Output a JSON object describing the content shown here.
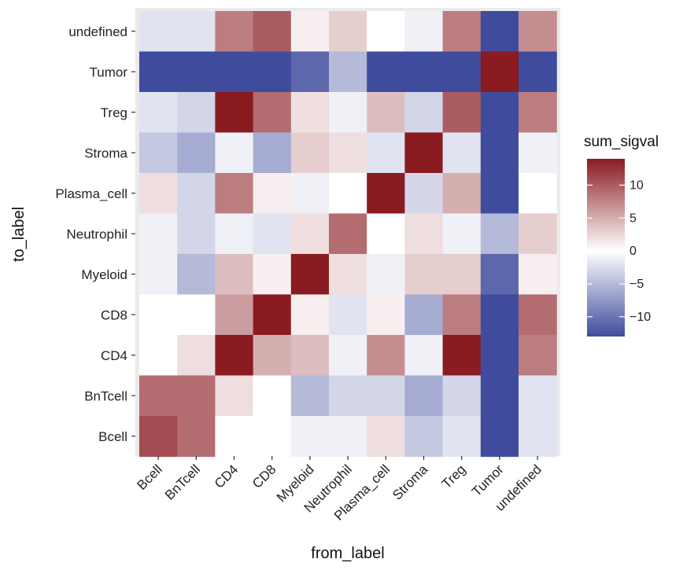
{
  "chart_data": {
    "type": "heatmap",
    "xlabel": "from_label",
    "ylabel": "to_label",
    "x_categories": [
      "Bcell",
      "BnTcell",
      "CD4",
      "CD8",
      "Myeloid",
      "Neutrophil",
      "Plasma_cell",
      "Stroma",
      "Treg",
      "Tumor",
      "undefined"
    ],
    "y_categories_top_to_bottom": [
      "undefined",
      "Tumor",
      "Treg",
      "Stroma",
      "Plasma_cell",
      "Neutrophil",
      "Myeloid",
      "CD8",
      "CD4",
      "BnTcell",
      "Bcell"
    ],
    "values": [
      [
        -2,
        -2,
        8,
        10,
        1,
        3,
        0,
        -1,
        8,
        -13,
        7
      ],
      [
        -13,
        -13,
        -13,
        -13,
        -11,
        -5,
        -13,
        -13,
        -13,
        14,
        -13
      ],
      [
        -2,
        -3,
        14,
        9,
        2,
        -1,
        4,
        -3,
        10,
        -13,
        8
      ],
      [
        -4,
        -6,
        -1,
        -6,
        3,
        2,
        -2,
        14,
        -2,
        -13,
        -1
      ],
      [
        2,
        -3,
        8,
        1,
        -1,
        0,
        14,
        -3,
        5,
        -13,
        0
      ],
      [
        -1,
        -3,
        -1,
        -2,
        2,
        9,
        0,
        2,
        -1,
        -5,
        3
      ],
      [
        -1,
        -5,
        4,
        1,
        14,
        2,
        -1,
        3,
        3,
        -11,
        1
      ],
      [
        0,
        0,
        6,
        14,
        1,
        -2,
        1,
        -6,
        8,
        -13,
        9
      ],
      [
        0,
        2,
        14,
        5,
        4,
        -1,
        7,
        -1,
        14,
        -13,
        8
      ],
      [
        9,
        9,
        2,
        0,
        -5,
        -3,
        -3,
        -6,
        -3,
        -13,
        -2
      ],
      [
        11,
        9,
        0,
        0,
        -1,
        -1,
        2,
        -4,
        -2,
        -13,
        -2
      ]
    ],
    "legend": {
      "title": "sum_sigval",
      "range": [
        -13,
        14
      ],
      "ticks": [
        10,
        5,
        0,
        -5,
        -10
      ],
      "tick_labels": [
        "10",
        "5",
        "0",
        "−5",
        "−10"
      ],
      "colors": {
        "low": "#3f4c9d",
        "mid": "#ffffff",
        "high": "#891b21"
      }
    },
    "panel_background": "#ebebeb"
  }
}
